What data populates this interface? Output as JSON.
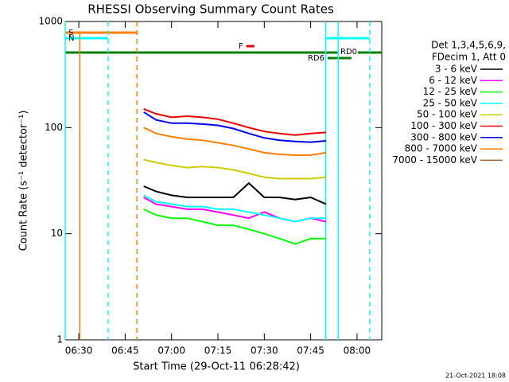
{
  "chart_data": {
    "type": "line",
    "title": "RHESSI Observing Summary Count Rates",
    "x_label": "Start Time (29-Oct-11 06:28:42)",
    "y_label": "Count Rate (s⁻¹ detector⁻¹)",
    "legend_title": [
      "Det 1,3,4,5,6,9,",
      "FDecim 1, Att 0"
    ],
    "timestamp": "21-Oct-2021 18:08",
    "log_y": true,
    "xlim": [
      25.6,
      128
    ],
    "xticks": [
      {
        "value": 30,
        "label": "06:30"
      },
      {
        "value": 45,
        "label": "06:45"
      },
      {
        "value": 60,
        "label": "07:00"
      },
      {
        "value": 75,
        "label": "07:15"
      },
      {
        "value": 90,
        "label": "07:30"
      },
      {
        "value": 105,
        "label": "07:45"
      },
      {
        "value": 120,
        "label": "08:00"
      }
    ],
    "ylim": [
      1,
      1000
    ],
    "yticks": [
      1,
      10,
      100,
      1000
    ],
    "x": [
      51,
      55,
      60,
      65,
      70,
      75,
      80,
      85,
      90,
      95,
      100,
      105,
      110
    ],
    "series": [
      {
        "name": "3 - 6 keV",
        "color": "#000000",
        "values": [
          28,
          25,
          23,
          22,
          22,
          22,
          22,
          30,
          22,
          22,
          21,
          22,
          19
        ]
      },
      {
        "name": "6 - 12 keV",
        "color": "#ff00ff",
        "values": [
          22,
          19,
          18,
          17,
          17,
          16,
          15,
          14,
          16,
          14,
          13,
          14,
          13
        ]
      },
      {
        "name": "12 - 25 keV",
        "color": "#00ff00",
        "values": [
          17,
          15,
          14,
          14,
          13,
          12,
          12,
          11,
          10,
          9,
          8,
          9,
          9
        ]
      },
      {
        "name": "25 - 50 keV",
        "color": "#00ffff",
        "values": [
          23,
          20,
          19,
          18,
          18,
          17,
          17,
          16,
          15,
          14,
          13,
          14,
          14
        ]
      },
      {
        "name": "50 - 100 keV",
        "color": "#cccc00",
        "values": [
          50,
          47,
          44,
          42,
          43,
          42,
          40,
          37,
          34,
          33,
          33,
          33,
          34
        ]
      },
      {
        "name": "100 - 300 keV",
        "color": "#ee0000",
        "values": [
          150,
          135,
          125,
          128,
          125,
          120,
          110,
          100,
          92,
          88,
          85,
          88,
          90
        ]
      },
      {
        "name": "300 - 800 keV",
        "color": "#0000ee",
        "values": [
          140,
          118,
          110,
          110,
          108,
          105,
          98,
          88,
          80,
          76,
          74,
          73,
          75
        ]
      },
      {
        "name": "800 - 7000 keV",
        "color": "#ff7f00",
        "values": [
          100,
          88,
          82,
          78,
          76,
          72,
          68,
          63,
          58,
          56,
          55,
          55,
          58
        ]
      },
      {
        "name": "7000 - 15000 keV",
        "color": "#996633",
        "values": [
          null,
          null,
          null,
          null,
          null,
          null,
          null,
          null,
          null,
          null,
          null,
          null,
          null
        ]
      }
    ],
    "flags": [
      {
        "label": "S",
        "color": "#ff7f00",
        "start": 25.6,
        "end": 48.8
      },
      {
        "label": "N",
        "color": "#00ffff",
        "start": 25.6,
        "end": 39.5
      },
      {
        "color": "#00ffff",
        "start": 109.9,
        "end": 124.1
      },
      {
        "label": "F",
        "color": "#ee0000",
        "start": 84.2,
        "end": 86.8
      },
      {
        "label": "RD0",
        "color": "#008000",
        "start": 25.6,
        "end": 128
      },
      {
        "label": "RD6",
        "color": "#008000",
        "start": 110.5,
        "end": 118.2
      }
    ],
    "markers": [
      {
        "x": 25.6,
        "color": "#00ffff",
        "dashed": false
      },
      {
        "x": 30.3,
        "color": "#ff7f00",
        "dashed": false
      },
      {
        "x": 39.5,
        "color": "#00ffff",
        "dashed": true
      },
      {
        "x": 48.8,
        "color": "#ff7f00",
        "dashed": true
      },
      {
        "x": 109.9,
        "color": "#00ffff",
        "dashed": false
      },
      {
        "x": 113.9,
        "color": "#00ffff",
        "dashed": false
      },
      {
        "x": 124.1,
        "color": "#00ffff",
        "dashed": true
      }
    ]
  }
}
